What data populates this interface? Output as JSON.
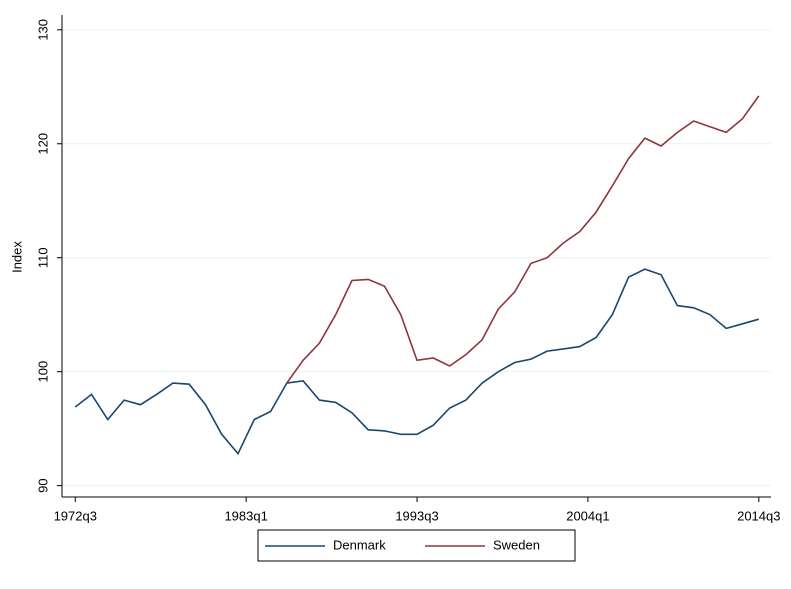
{
  "chart_data": {
    "type": "line",
    "y_label": "Index",
    "x": [
      "1972q3",
      "1973q3",
      "1974q3",
      "1975q3",
      "1976q3",
      "1977q3",
      "1978q3",
      "1979q3",
      "1980q3",
      "1981q3",
      "1982q3",
      "1983q3",
      "1984q3",
      "1985q3",
      "1986q3",
      "1987q3",
      "1988q3",
      "1989q3",
      "1990q3",
      "1991q3",
      "1992q3",
      "1993q3",
      "1994q3",
      "1995q3",
      "1996q3",
      "1997q3",
      "1998q3",
      "1999q3",
      "2000q3",
      "2001q3",
      "2002q3",
      "2003q3",
      "2004q3",
      "2005q3",
      "2006q3",
      "2007q3",
      "2008q3",
      "2009q3",
      "2010q3",
      "2011q3",
      "2012q3",
      "2013q3",
      "2014q3"
    ],
    "series": [
      {
        "name": "Denmark",
        "color": "#1a476f",
        "values": [
          96.9,
          98.0,
          95.8,
          97.5,
          97.1,
          98.0,
          99.0,
          98.9,
          97.1,
          94.5,
          92.8,
          95.8,
          96.5,
          99.0,
          99.2,
          97.5,
          97.3,
          96.4,
          94.9,
          94.8,
          94.5,
          94.5,
          95.3,
          96.8,
          97.5,
          99.0,
          100.0,
          100.8,
          101.1,
          101.8,
          102.0,
          102.2,
          103.0,
          105.0,
          108.3,
          109.0,
          108.5,
          105.8,
          105.6,
          105.0,
          103.8,
          104.2,
          104.6
        ]
      },
      {
        "name": "Sweden",
        "color": "#90353b",
        "values": [
          null,
          null,
          null,
          null,
          null,
          null,
          null,
          null,
          null,
          null,
          null,
          null,
          null,
          99.0,
          101.0,
          102.5,
          105.0,
          108.0,
          108.1,
          107.5,
          105.0,
          101.0,
          101.2,
          100.5,
          101.5,
          102.8,
          105.5,
          107.0,
          109.5,
          110.0,
          111.3,
          112.3,
          114.0,
          116.3,
          118.7,
          120.5,
          119.8,
          121.0,
          122.0,
          121.5,
          121.0,
          122.2,
          124.2
        ]
      }
    ],
    "xlim": [
      "1971q3",
      "2015q2"
    ],
    "xticks": [
      "1972q3",
      "1983q1",
      "1993q3",
      "2004q1",
      "2014q3"
    ],
    "ylim": [
      89,
      131.3
    ],
    "yticks": [
      90,
      100,
      110,
      120,
      130
    ],
    "grid": true,
    "legend": "bottom"
  }
}
